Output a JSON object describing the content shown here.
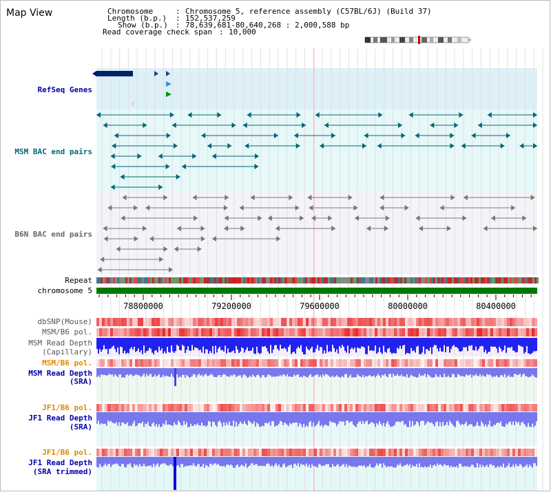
{
  "title": "Map View",
  "info": {
    "chromosome_key": "Chromosome",
    "chromosome_val": "Chromosome 5, reference assembly (C57BL/6J) (Build 37)",
    "length_key": "Length (b.p.)",
    "length_val": "152,537,259",
    "show_key": "Show (b.p.)",
    "show_val": "78,639,681-80,640,268 : 2,000,588 bp",
    "coverage_key": "Read coverage check span",
    "coverage_val": "10,000"
  },
  "tracks": {
    "refseq": "RefSeq Genes",
    "msm_bac": "MSM BAC end pairs",
    "b6n_bac": "B6N BAC end pairs",
    "repeat": "Repeat",
    "chromosome": "chromosome 5",
    "dbsnp": "dbSNP(Mouse)",
    "msm_b6_pol_1": "MSM/B6 pol.",
    "msm_depth_cap_1": "MSM Read Depth",
    "msm_depth_cap_2": "(Capillary)",
    "msm_b6_pol_2": "MSM/B6 pol.",
    "msm_depth_sra_1": "MSM Read Depth",
    "msm_depth_sra_2": "(SRA)",
    "jf1_b6_pol_1": "JF1/B6 pol.",
    "jf1_depth_sra_1": "JF1 Read Depth",
    "jf1_depth_sra_2": "(SRA)",
    "jf1_b6_pol_2": "JF1/B6 pol.",
    "jf1_depth_trim_1": "JF1 Read Depth",
    "jf1_depth_trim_2": "(SRA trimmed)"
  },
  "axis": {
    "ticks": [
      "78800000",
      "79200000",
      "79600000",
      "80000000",
      "80400000"
    ]
  },
  "colors": {
    "gene_blue": "#0000aa",
    "msm_teal": "#006677",
    "refseq_bg": "#ddf0f8",
    "msm_bg": "#e6f8f8",
    "b6n_bg": "#f4f4f8",
    "chromosome_green": "#007700",
    "depth_blue": "#2222ee",
    "sra_blue": "#7777ee",
    "pol_orange": "#dd8800"
  }
}
